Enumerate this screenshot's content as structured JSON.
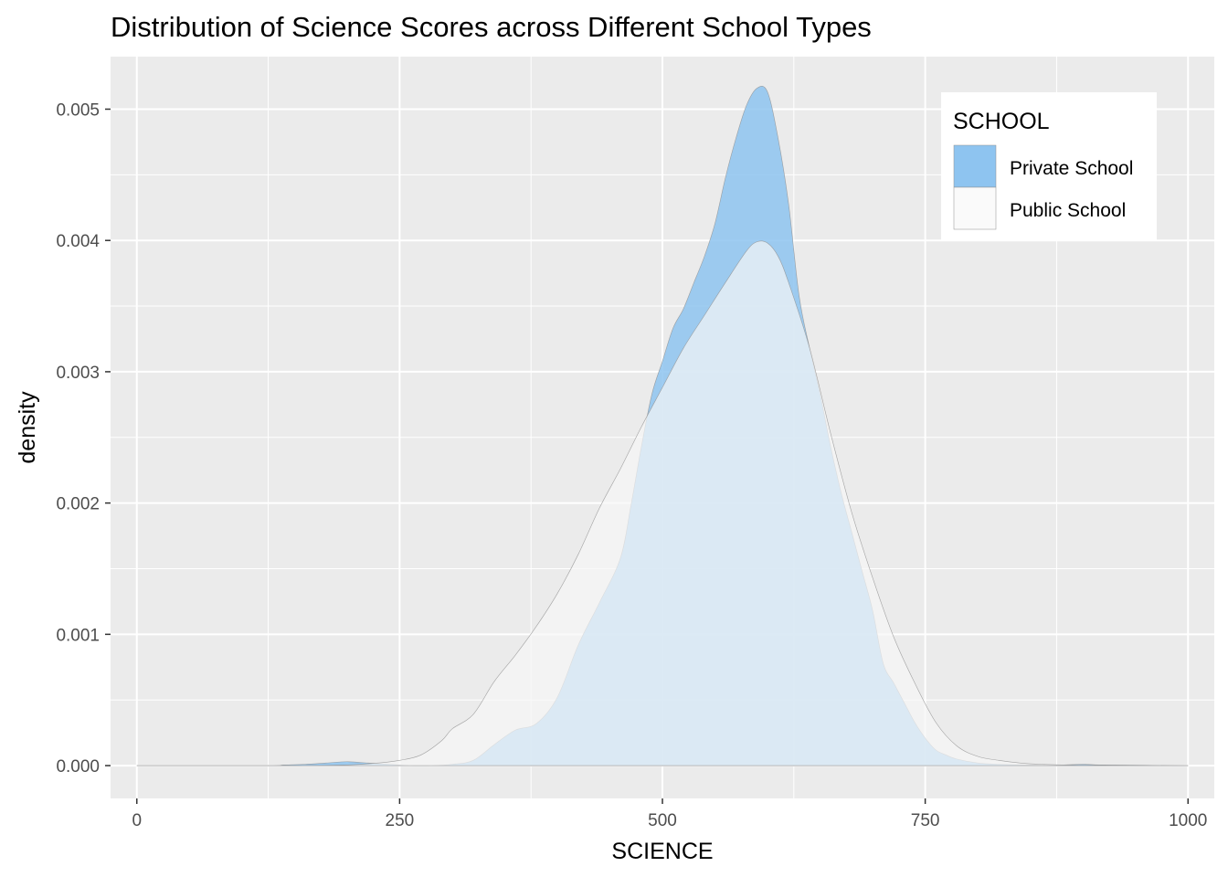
{
  "chart_data": {
    "type": "area",
    "title": "Distribution of Science Scores across Different School Types",
    "xlabel": "SCIENCE",
    "ylabel": "density",
    "xlim": [
      -25,
      1025
    ],
    "ylim": [
      -0.00025,
      0.0054
    ],
    "x_ticks": [
      0,
      250,
      500,
      750,
      1000
    ],
    "x_tick_labels": [
      "0",
      "250",
      "500",
      "750",
      "1000"
    ],
    "y_ticks": [
      0.0,
      0.001,
      0.002,
      0.003,
      0.004,
      0.005
    ],
    "y_tick_labels": [
      "0.000",
      "0.001",
      "0.002",
      "0.003",
      "0.004",
      "0.005"
    ],
    "grid": true,
    "legend": {
      "title": "SCHOOL",
      "placement": "top-right",
      "entries": [
        "Private School",
        "Public School"
      ]
    },
    "colors": {
      "panel": "#ebebeb",
      "grid": "#ffffff",
      "private_fill": "#8ec4f0",
      "public_fill": "#f6f6f6",
      "outline": "#8f8f8f"
    },
    "series": [
      {
        "name": "Private School",
        "color": "#8ec4f0",
        "x": [
          0,
          120,
          140,
          160,
          180,
          200,
          220,
          240,
          260,
          280,
          300,
          320,
          340,
          360,
          380,
          400,
          420,
          440,
          460,
          470,
          480,
          490,
          500,
          510,
          520,
          530,
          540,
          550,
          560,
          570,
          580,
          590,
          600,
          610,
          620,
          630,
          640,
          650,
          660,
          670,
          680,
          690,
          700,
          710,
          720,
          730,
          740,
          750,
          760,
          770,
          780,
          800,
          820,
          850,
          880,
          900,
          920,
          1000
        ],
        "y": [
          0.0,
          0.0,
          5e-06,
          1e-05,
          2e-05,
          3e-05,
          2e-05,
          1e-05,
          0.0,
          0.0,
          1e-05,
          4e-05,
          0.00016,
          0.00027,
          0.00032,
          0.00052,
          0.00092,
          0.00124,
          0.00158,
          0.00198,
          0.00243,
          0.00283,
          0.00308,
          0.00333,
          0.00348,
          0.00368,
          0.00388,
          0.00413,
          0.00448,
          0.00478,
          0.00503,
          0.00516,
          0.00513,
          0.00478,
          0.00428,
          0.00358,
          0.00318,
          0.00283,
          0.00243,
          0.00208,
          0.00178,
          0.00148,
          0.00118,
          0.00078,
          0.00063,
          0.00048,
          0.00033,
          0.00021,
          0.00012,
          8e-05,
          5e-05,
          2e-05,
          1e-05,
          5e-06,
          5e-06,
          1e-05,
          5e-06,
          0.0
        ]
      },
      {
        "name": "Public School",
        "color": "#f6f6f6",
        "x": [
          0,
          150,
          200,
          230,
          250,
          270,
          290,
          300,
          320,
          340,
          360,
          380,
          400,
          420,
          440,
          460,
          480,
          500,
          520,
          540,
          560,
          580,
          590,
          600,
          610,
          620,
          640,
          660,
          680,
          700,
          720,
          740,
          760,
          780,
          800,
          820,
          840,
          860,
          900,
          950,
          1000
        ],
        "y": [
          0.0,
          0.0,
          5e-06,
          2e-05,
          4e-05,
          8e-05,
          0.00019,
          0.00028,
          0.00039,
          0.00064,
          0.00084,
          0.00106,
          0.00131,
          0.00161,
          0.00196,
          0.00226,
          0.00258,
          0.00288,
          0.00318,
          0.00343,
          0.00368,
          0.00392,
          0.00399,
          0.00398,
          0.00388,
          0.00368,
          0.00318,
          0.00253,
          0.00193,
          0.00143,
          0.00098,
          0.00063,
          0.00033,
          0.00015,
          7e-05,
          4e-05,
          2e-05,
          1e-05,
          3e-06,
          0.0,
          0.0
        ]
      }
    ]
  }
}
